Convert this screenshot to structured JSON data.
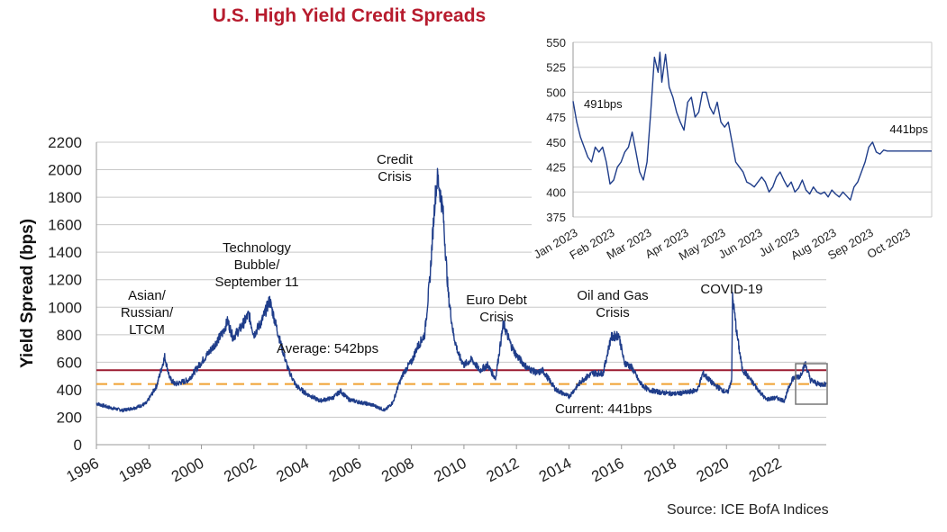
{
  "title": "U.S. High Yield Credit Spreads",
  "source": "Source: ICE BofA Indices",
  "colors": {
    "title": "#b71c2e",
    "series": "#1f3d8a",
    "average": "#9b1b30",
    "current": "#f0a030",
    "grid": "#c8c8c8",
    "zoom_box": "#777777"
  },
  "chart_data": [
    {
      "type": "line",
      "ylabel": "Yield Spread (bps)",
      "xlabel": "",
      "xlim": [
        1996,
        2023.8
      ],
      "ylim": [
        0,
        2200
      ],
      "yticks": [
        0,
        200,
        400,
        600,
        800,
        1000,
        1200,
        1400,
        1600,
        1800,
        2000,
        2200
      ],
      "xticks": [
        "1996",
        "1998",
        "2000",
        "2002",
        "2004",
        "2006",
        "2008",
        "2010",
        "2012",
        "2014",
        "2016",
        "2018",
        "2020",
        "2022"
      ],
      "grid": "horizontal",
      "series": [
        {
          "x": [
            1996.0,
            1996.5,
            1997.0,
            1997.5,
            1997.9,
            1998.3,
            1998.6,
            1998.8,
            1999.0,
            1999.5,
            2000.0,
            2000.4,
            2000.8,
            2001.0,
            2001.2,
            2001.5,
            2001.8,
            2002.0,
            2002.3,
            2002.6,
            2002.8,
            2003.0,
            2003.3,
            2003.6,
            2004.0,
            2004.5,
            2005.0,
            2005.3,
            2005.6,
            2006.0,
            2006.5,
            2007.0,
            2007.3,
            2007.5,
            2007.7,
            2007.9,
            2008.0,
            2008.2,
            2008.5,
            2008.7,
            2008.9,
            2009.0,
            2009.2,
            2009.4,
            2009.6,
            2009.8,
            2010.0,
            2010.3,
            2010.6,
            2010.9,
            2011.2,
            2011.5,
            2011.8,
            2012.0,
            2012.4,
            2012.8,
            2013.0,
            2013.5,
            2014.0,
            2014.5,
            2014.9,
            2015.3,
            2015.6,
            2015.9,
            2016.1,
            2016.4,
            2016.7,
            2017.0,
            2017.5,
            2018.0,
            2018.5,
            2018.9,
            2019.1,
            2019.5,
            2019.9,
            2020.05,
            2020.2,
            2020.23,
            2020.4,
            2020.6,
            2020.8,
            2021.0,
            2021.5,
            2021.9,
            2022.2,
            2022.5,
            2022.8,
            2023.0,
            2023.2,
            2023.5,
            2023.8
          ],
          "y": [
            300,
            270,
            250,
            270,
            300,
            430,
            640,
            480,
            440,
            470,
            600,
            700,
            810,
            900,
            780,
            850,
            950,
            800,
            900,
            1050,
            900,
            750,
            550,
            430,
            370,
            320,
            340,
            390,
            330,
            310,
            290,
            250,
            310,
            430,
            520,
            580,
            600,
            700,
            800,
            1200,
            1800,
            1950,
            1700,
            1100,
            800,
            650,
            580,
            620,
            540,
            580,
            480,
            880,
            720,
            650,
            560,
            520,
            540,
            400,
            350,
            470,
            520,
            520,
            780,
            800,
            600,
            560,
            450,
            400,
            380,
            370,
            380,
            400,
            520,
            440,
            390,
            380,
            480,
            1080,
            800,
            550,
            500,
            450,
            330,
            340,
            320,
            480,
            500,
            590,
            470,
            440,
            441
          ]
        }
      ],
      "reference_lines": [
        {
          "name": "Average",
          "value": 542,
          "style": "solid"
        },
        {
          "name": "Current",
          "value": 441,
          "style": "dashed"
        }
      ],
      "annotations": [
        {
          "id": "asian",
          "lines": [
            "Asian/",
            "Russian/",
            "LTCM"
          ]
        },
        {
          "id": "tech",
          "lines": [
            "Technology",
            "Bubble/",
            "September 11"
          ]
        },
        {
          "id": "credit",
          "lines": [
            "Credit",
            "Crisis"
          ]
        },
        {
          "id": "euro",
          "lines": [
            "Euro Debt",
            "Crisis"
          ]
        },
        {
          "id": "oil",
          "lines": [
            "Oil and Gas",
            "Crisis"
          ]
        },
        {
          "id": "covid",
          "lines": [
            "COVID-19"
          ]
        },
        {
          "id": "average",
          "lines": [
            "Average: 542bps"
          ]
        },
        {
          "id": "current",
          "lines": [
            "Current: 441bps"
          ]
        }
      ]
    },
    {
      "type": "line",
      "title": "",
      "xlim": [
        0,
        9.7
      ],
      "ylim": [
        375,
        550
      ],
      "yticks": [
        375,
        400,
        425,
        450,
        475,
        500,
        525,
        550
      ],
      "xticks": [
        "Jan 2023",
        "Feb 2023",
        "Mar 2023",
        "Apr 2023",
        "May 2023",
        "Jun 2023",
        "Jul 2023",
        "Aug 2023",
        "Sep 2023",
        "Oct 2023"
      ],
      "grid": "horizontal",
      "series": [
        {
          "x": [
            0.0,
            0.1,
            0.2,
            0.3,
            0.4,
            0.5,
            0.6,
            0.7,
            0.8,
            0.9,
            1.0,
            1.1,
            1.2,
            1.3,
            1.4,
            1.5,
            1.6,
            1.7,
            1.8,
            1.9,
            2.0,
            2.1,
            2.2,
            2.3,
            2.35,
            2.4,
            2.5,
            2.6,
            2.7,
            2.8,
            2.9,
            3.0,
            3.1,
            3.2,
            3.3,
            3.4,
            3.5,
            3.6,
            3.7,
            3.8,
            3.9,
            4.0,
            4.1,
            4.2,
            4.3,
            4.4,
            4.5,
            4.6,
            4.7,
            4.8,
            4.9,
            5.0,
            5.1,
            5.2,
            5.3,
            5.4,
            5.5,
            5.6,
            5.7,
            5.8,
            5.9,
            6.0,
            6.1,
            6.2,
            6.3,
            6.4,
            6.5,
            6.6,
            6.7,
            6.8,
            6.9,
            7.0,
            7.1,
            7.2,
            7.3,
            7.4,
            7.5,
            7.6,
            7.7,
            7.8,
            7.9,
            8.0,
            8.1,
            8.2,
            8.3,
            8.4,
            8.5,
            8.6,
            8.7,
            8.8,
            8.9,
            9.0,
            9.1,
            9.2,
            9.3,
            9.4,
            9.5,
            9.6,
            9.7
          ],
          "y": [
            491,
            470,
            455,
            445,
            435,
            430,
            445,
            440,
            445,
            430,
            408,
            412,
            425,
            430,
            440,
            445,
            460,
            440,
            420,
            412,
            430,
            480,
            535,
            520,
            540,
            510,
            538,
            505,
            495,
            480,
            470,
            462,
            490,
            495,
            475,
            480,
            500,
            500,
            485,
            478,
            490,
            470,
            465,
            470,
            450,
            430,
            425,
            420,
            410,
            408,
            405,
            410,
            415,
            410,
            400,
            405,
            415,
            420,
            412,
            405,
            410,
            400,
            404,
            412,
            402,
            398,
            405,
            400,
            398,
            400,
            395,
            402,
            398,
            395,
            400,
            396,
            392,
            405,
            410,
            420,
            430,
            445,
            450,
            440,
            438,
            442,
            441,
            441,
            441,
            441,
            441,
            441,
            441,
            441,
            441,
            441,
            441,
            441,
            441
          ]
        }
      ],
      "annotations": [
        {
          "id": "start",
          "lines": [
            "491bps"
          ]
        },
        {
          "id": "end",
          "lines": [
            "441bps"
          ]
        }
      ]
    }
  ]
}
